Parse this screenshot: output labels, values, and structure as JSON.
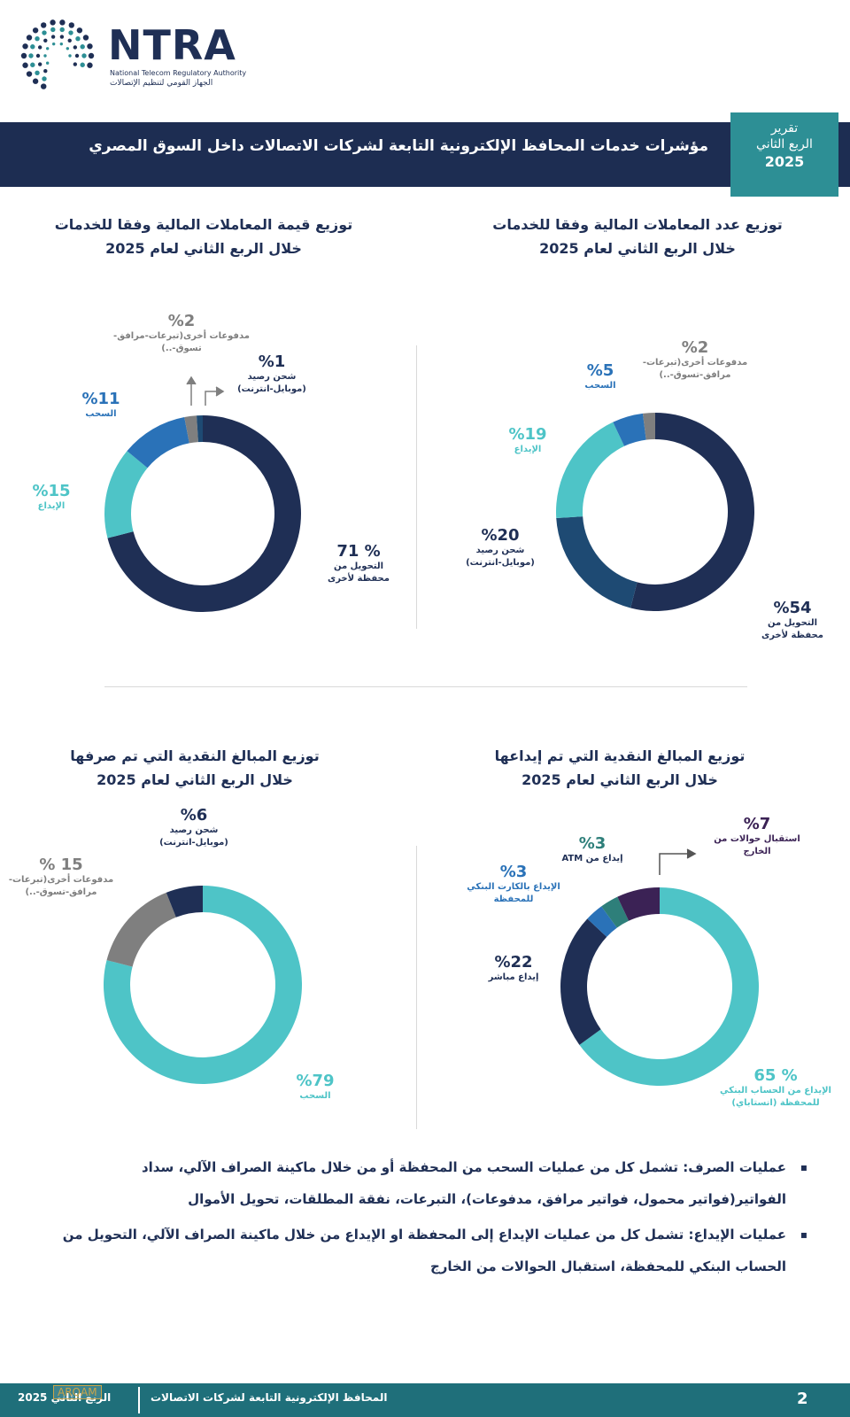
{
  "logo": {
    "word": "NTRA",
    "english": "National Telecom Regulatory Authority",
    "arabic": "الجهاز القومي لتنظيم الإتصالات"
  },
  "header": {
    "title": "مؤشرات خدمات المحافظ الإلكترونية التابعة لشركات الاتصالات داخل السوق المصري",
    "badge_l1": "تقرير",
    "badge_l2": "الربع الثاني",
    "badge_l3": "2025"
  },
  "colors": {
    "navy": "#1f2f55",
    "dark_blue": "#1e4a73",
    "teal": "#4ec4c7",
    "blue": "#2a72b8",
    "grey": "#7f7f7f",
    "green_teal": "#2e7f7a",
    "purple": "#3b2255"
  },
  "chart_data": [
    {
      "type": "pie",
      "title": "توزيع عدد المعاملات المالية وفقا للخدمات",
      "subtitle": "خلال الربع الثاني لعام 2025",
      "slices": [
        {
          "pct_label": "%54",
          "value": 54,
          "label": "التحويل من محفظة لأخرى",
          "color": "#1f2f55"
        },
        {
          "pct_label": "%20",
          "value": 20,
          "label": "شحن رصيد (موبايل-انترنت)",
          "color": "#1e4a73"
        },
        {
          "pct_label": "%19",
          "value": 19,
          "label": "الإيداع",
          "color": "#4ec4c7"
        },
        {
          "pct_label": "%5",
          "value": 5,
          "label": "السحب",
          "color": "#2a72b8"
        },
        {
          "pct_label": "%2",
          "value": 2,
          "label": "مدفوعات أخرى(تبرعات-مرافق-تسوق-..)",
          "color": "#7f7f7f"
        }
      ]
    },
    {
      "type": "pie",
      "title": "توزيع قيمة المعاملات المالية وفقا للخدمات",
      "subtitle": "خلال الربع الثاني لعام 2025",
      "slices": [
        {
          "pct_label": "% 71",
          "value": 71,
          "label": "التحويل من محفظة لأخرى",
          "color": "#1f2f55"
        },
        {
          "pct_label": "%15",
          "value": 15,
          "label": "الإيداع",
          "color": "#4ec4c7"
        },
        {
          "pct_label": "%11",
          "value": 11,
          "label": "السحب",
          "color": "#2a72b8"
        },
        {
          "pct_label": "%2",
          "value": 2,
          "label": "مدفوعات أخرى(تبرعات-مرافق-تسوق-..)",
          "color": "#7f7f7f"
        },
        {
          "pct_label": "%1",
          "value": 1,
          "label": "شحن رصيد (موبايل-انترنت)",
          "color": "#1e4a73"
        }
      ]
    },
    {
      "type": "pie",
      "title": "توزيع المبالغ النقدية التي تم إيداعها",
      "subtitle": "خلال الربع الثاني لعام 2025",
      "slices": [
        {
          "pct_label": "% 65",
          "value": 65,
          "label": "الإيداع من الحساب البنكي للمحفظة (انستاباي)",
          "color": "#4ec4c7"
        },
        {
          "pct_label": "%22",
          "value": 22,
          "label": "إيداع مباشر",
          "color": "#1f2f55"
        },
        {
          "pct_label": "%3",
          "value": 3,
          "label": "الإيداع بالكارت البنكي للمحفظة",
          "color": "#2a72b8"
        },
        {
          "pct_label": "%3",
          "value": 3,
          "label": "إيداع من ATM",
          "color": "#2e7f7a"
        },
        {
          "pct_label": "%7",
          "value": 7,
          "label": "استقبال حوالات من الخارج",
          "color": "#3b2255"
        }
      ]
    },
    {
      "type": "pie",
      "title": "توزيع المبالغ النقدية التي تم صرفها",
      "subtitle": "خلال الربع الثاني لعام 2025",
      "slices": [
        {
          "pct_label": "%79",
          "value": 79,
          "label": "السحب",
          "color": "#4ec4c7"
        },
        {
          "pct_label": "15 %",
          "value": 15,
          "label": "مدفوعات أخرى(تبرعات-مرافق-تسوق-..)",
          "color": "#7f7f7f"
        },
        {
          "pct_label": "%6",
          "value": 6,
          "label": "شحن رصيد (موبايل-انترنت)",
          "color": "#1f2f55"
        }
      ]
    }
  ],
  "notes": [
    "عمليات الصرف: تشمل كل من عمليات السحب من المحفظة أو من خلال ماكينة الصراف الآلي، سداد الفواتير(فواتير محمول، فواتير مرافق، مدفوعات)، التبرعات، نفقة المطلقات، تحويل الأموال",
    "عمليات الإيداع: تشمل كل من عمليات الإيداع إلى المحفظة او الإيداع من خلال ماكينة الصراف الآلي، التحويل من الحساب البنكي للمحفظة، استقبال الحوالات من الخارج"
  ],
  "footer": {
    "page": "2",
    "text": "المحافظ الإلكترونية التابعة لشركات الاتصالات",
    "quarter": "الربع الثاني 2025",
    "watermark": "ARQAM"
  }
}
